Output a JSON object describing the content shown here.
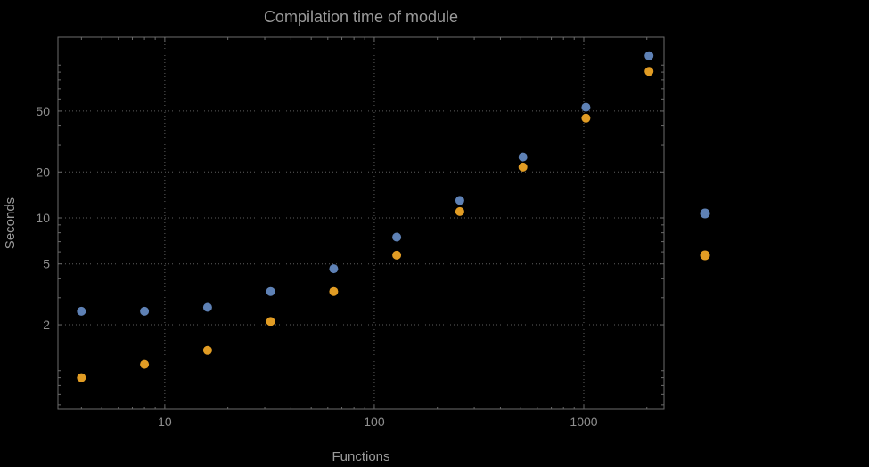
{
  "chart_data": {
    "type": "scatter",
    "title": "Compilation time of module",
    "xlabel": "Functions",
    "ylabel": "Seconds",
    "x_scale": "log",
    "y_scale": "log",
    "xlim": [
      3.09,
      2415
    ],
    "ylim": [
      0.56,
      152
    ],
    "grid": true,
    "legend_position": "right-outside",
    "x": [
      4,
      8,
      16,
      32,
      64,
      128,
      256,
      512,
      1024,
      2048
    ],
    "series": [
      {
        "id": "blue",
        "label": "",
        "color": "#5e81b5",
        "values": [
          2.45,
          2.45,
          2.6,
          3.3,
          4.65,
          7.5,
          13,
          25,
          53,
          115
        ]
      },
      {
        "id": "orange",
        "label": "",
        "color": "#e19c24",
        "values": [
          0.9,
          1.1,
          1.36,
          2.1,
          3.3,
          5.7,
          11,
          21.5,
          45,
          91
        ]
      }
    ],
    "x_ticks": [
      {
        "value": 10,
        "label": "10"
      },
      {
        "value": 100,
        "label": "100"
      },
      {
        "value": 1000,
        "label": "1000"
      }
    ],
    "y_ticks": [
      {
        "value": 2,
        "label": "2"
      },
      {
        "value": 5,
        "label": "5"
      },
      {
        "value": 10,
        "label": "10"
      },
      {
        "value": 20,
        "label": "20"
      },
      {
        "value": 50,
        "label": "50"
      }
    ],
    "legend": {
      "entries": [
        {
          "id": "blue",
          "marker_color": "#5e81b5",
          "label": ""
        },
        {
          "id": "orange",
          "marker_color": "#e19c24",
          "label": ""
        }
      ]
    }
  },
  "colors": {
    "background": "#000000",
    "frame": "#6b6b6b",
    "grid": "#5e5e5e",
    "tick_text": "#8f8f8f",
    "label_text": "#9a9a9a",
    "title_text": "#9a9a9a",
    "series_blue": "#5e81b5",
    "series_orange": "#e19c24"
  }
}
